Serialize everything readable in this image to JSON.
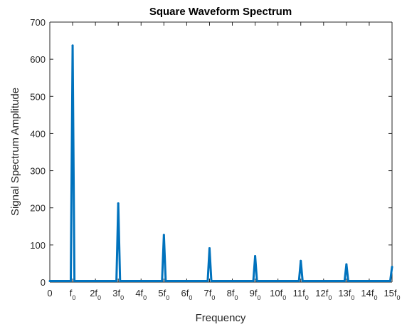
{
  "chart_data": {
    "type": "line",
    "title": "Square Waveform Spectrum",
    "xlabel": "Frequency",
    "ylabel": "Signal Spectrum Amplitude",
    "xlim": [
      0,
      15
    ],
    "ylim": [
      0,
      700
    ],
    "grid": false,
    "x_ticks": [
      {
        "value": 0,
        "base": "0",
        "sub": ""
      },
      {
        "value": 1,
        "base": "f",
        "sub": "0"
      },
      {
        "value": 2,
        "base": "2f",
        "sub": "0"
      },
      {
        "value": 3,
        "base": "3f",
        "sub": "0"
      },
      {
        "value": 4,
        "base": "4f",
        "sub": "0"
      },
      {
        "value": 5,
        "base": "5f",
        "sub": "0"
      },
      {
        "value": 6,
        "base": "6f",
        "sub": "0"
      },
      {
        "value": 7,
        "base": "7f",
        "sub": "0"
      },
      {
        "value": 8,
        "base": "8f",
        "sub": "0"
      },
      {
        "value": 9,
        "base": "9f",
        "sub": "0"
      },
      {
        "value": 10,
        "base": "10f",
        "sub": "0"
      },
      {
        "value": 11,
        "base": "11f",
        "sub": "0"
      },
      {
        "value": 12,
        "base": "12f",
        "sub": "0"
      },
      {
        "value": 13,
        "base": "13f",
        "sub": "0"
      },
      {
        "value": 14,
        "base": "14f",
        "sub": "0"
      },
      {
        "value": 15,
        "base": "15f",
        "sub": "0"
      }
    ],
    "y_ticks": [
      0,
      100,
      200,
      300,
      400,
      500,
      600,
      700
    ],
    "baseline": 3,
    "peak_halfwidth": 0.08,
    "series": [
      {
        "color": "#0072BD",
        "peaks": [
          {
            "x": 1,
            "y": 637
          },
          {
            "x": 3,
            "y": 212
          },
          {
            "x": 5,
            "y": 127
          },
          {
            "x": 7,
            "y": 91
          },
          {
            "x": 9,
            "y": 70
          },
          {
            "x": 11,
            "y": 57
          },
          {
            "x": 13,
            "y": 48
          },
          {
            "x": 15,
            "y": 41
          }
        ]
      }
    ]
  }
}
